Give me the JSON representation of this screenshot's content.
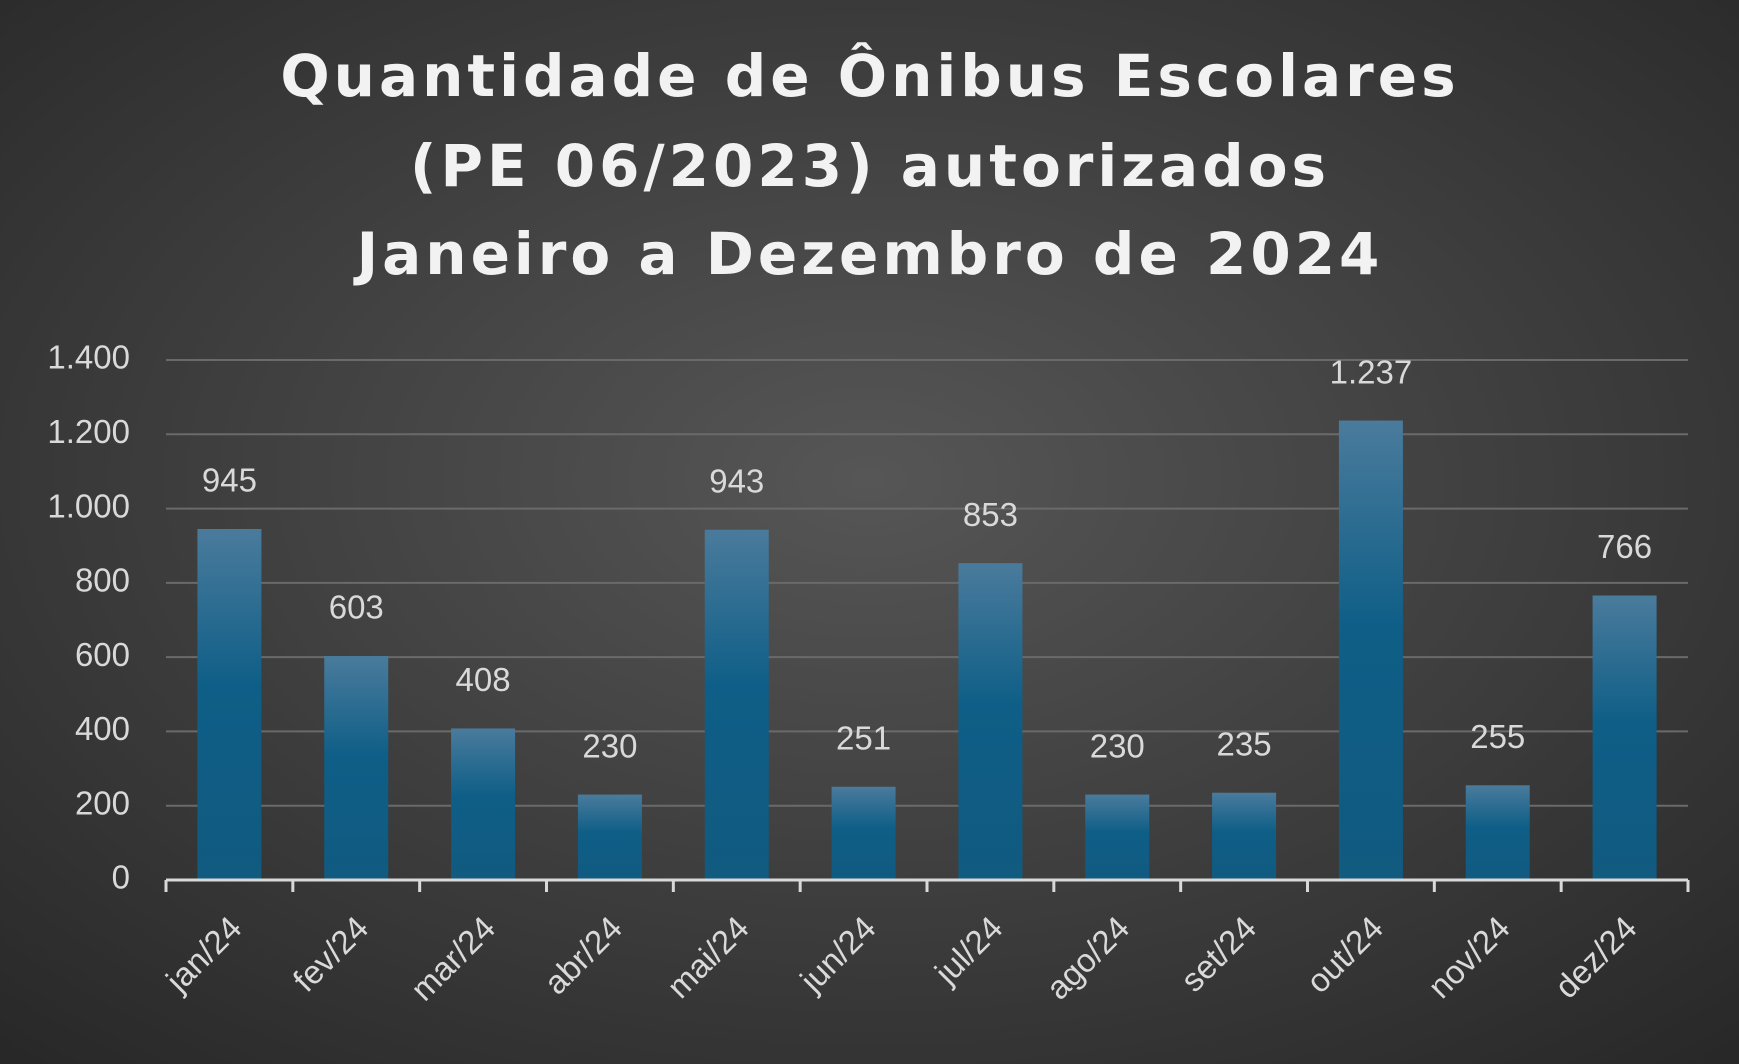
{
  "chart_data": {
    "type": "bar",
    "title": [
      "Quantidade de Ônibus Escolares",
      "(PE 06/2023) autorizados",
      "Janeiro a Dezembro de 2024"
    ],
    "categories": [
      "jan/24",
      "fev/24",
      "mar/24",
      "abr/24",
      "mai/24",
      "jun/24",
      "jul/24",
      "ago/24",
      "set/24",
      "out/24",
      "nov/24",
      "dez/24"
    ],
    "values": [
      945,
      603,
      408,
      230,
      943,
      251,
      853,
      230,
      235,
      1237,
      255,
      766
    ],
    "value_labels": [
      "945",
      "603",
      "408",
      "230",
      "943",
      "251",
      "853",
      "230",
      "235",
      "1.237",
      "255",
      "766"
    ],
    "color": "#105f88",
    "ylim": [
      0,
      1400
    ],
    "yticks": [
      0,
      200,
      400,
      600,
      800,
      {
        "value": 1000,
        "label": "1.000"
      },
      {
        "value": 1200,
        "label": "1.200"
      },
      {
        "value": 1400,
        "label": "1.400"
      }
    ],
    "grid": true
  }
}
